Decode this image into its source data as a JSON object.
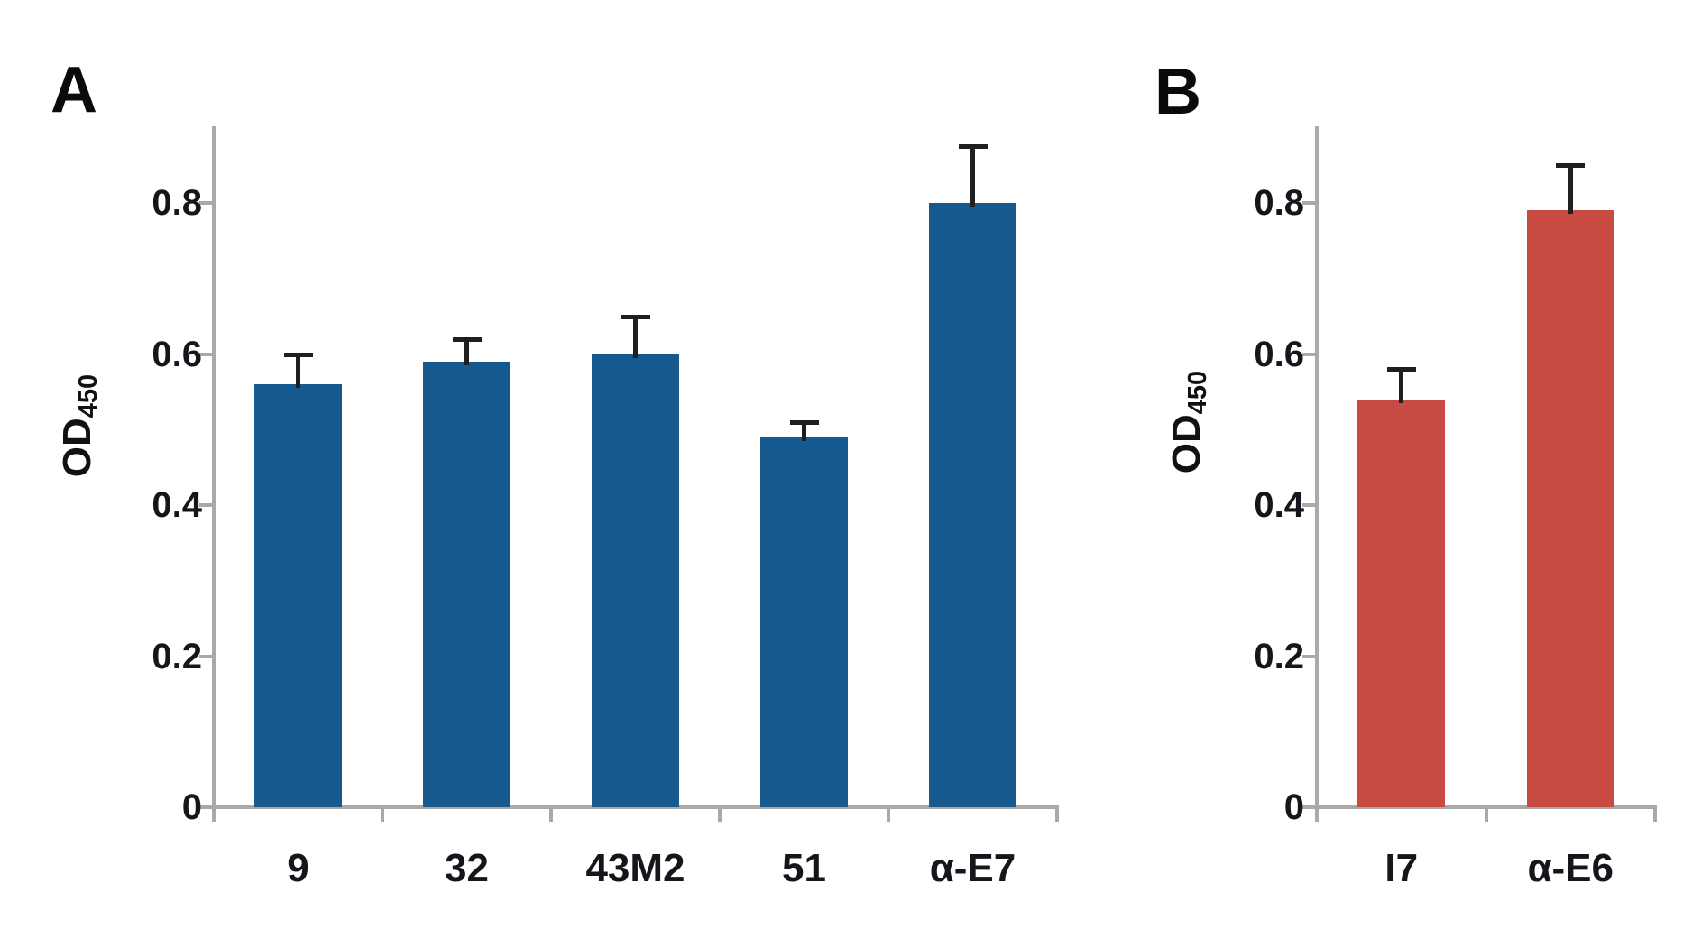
{
  "figure": {
    "background": "#ffffff",
    "panels": [
      {
        "letter": "A"
      },
      {
        "letter": "B"
      }
    ]
  },
  "colors": {
    "bar_blue": "#16598F",
    "bar_red": "#C74B42",
    "axis_gray": "#A9A9A9",
    "error_bar": "#1F1F1F",
    "text": "#15151C"
  },
  "chart_data": [
    {
      "type": "bar",
      "panel": "A",
      "title": "",
      "categories": [
        "9",
        "32",
        "43M2",
        "51",
        "α-E7"
      ],
      "values": [
        0.56,
        0.59,
        0.6,
        0.49,
        0.8
      ],
      "errors_plus": [
        0.04,
        0.03,
        0.05,
        0.02,
        0.075
      ],
      "xlabel": "",
      "ylabel": "OD",
      "ylabel_subscript": "450",
      "yticks": [
        0,
        0.2,
        0.4,
        0.6,
        0.8
      ],
      "ytick_labels": [
        "0",
        "0.2",
        "0.4",
        "0.6",
        "0.8"
      ],
      "ylim": [
        0,
        0.9
      ],
      "grid": false,
      "legend": "none",
      "bar_color": "#16598F"
    },
    {
      "type": "bar",
      "panel": "B",
      "title": "",
      "categories": [
        "I7",
        "α-E6"
      ],
      "values": [
        0.54,
        0.79
      ],
      "errors_plus": [
        0.04,
        0.06
      ],
      "xlabel": "",
      "ylabel": "OD",
      "ylabel_subscript": "450",
      "yticks": [
        0,
        0.2,
        0.4,
        0.6,
        0.8
      ],
      "ytick_labels": [
        "0",
        "0.2",
        "0.4",
        "0.6",
        "0.8"
      ],
      "ylim": [
        0,
        0.9
      ],
      "grid": false,
      "legend": "none",
      "bar_color": "#C74B42"
    }
  ]
}
